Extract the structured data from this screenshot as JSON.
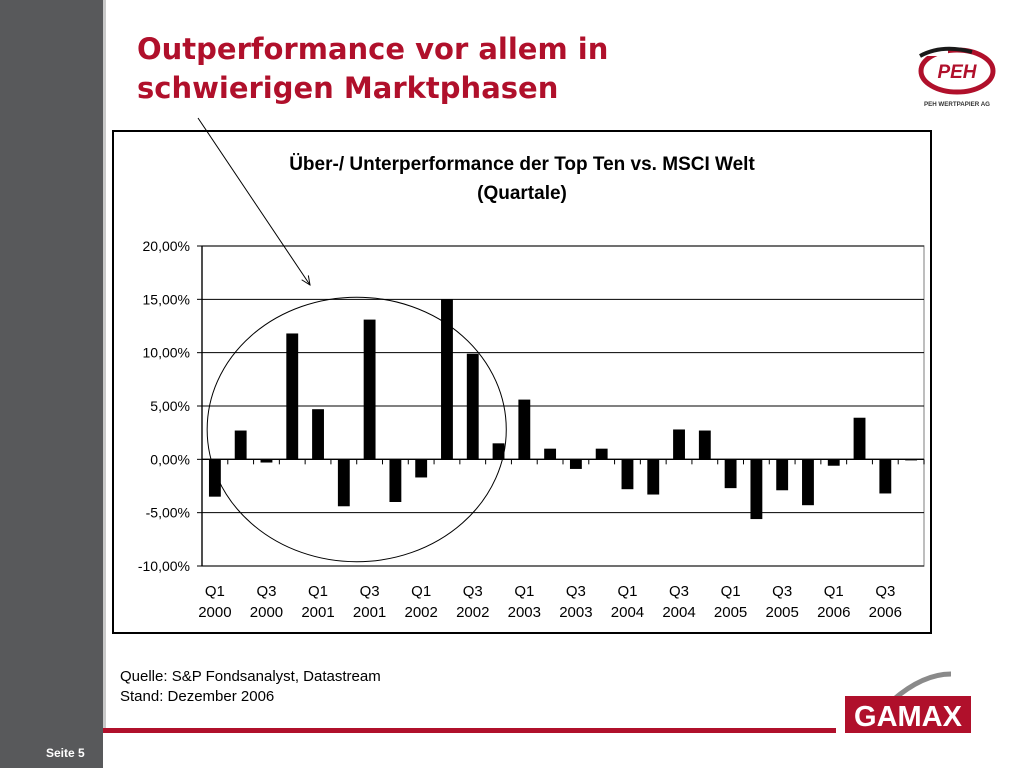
{
  "slide": {
    "title_line1": "Outperformance vor allem in",
    "title_line2": "schwierigen Marktphasen",
    "page_label": "Seite 5",
    "source_line1": "Quelle: S&P Fondsanalyst, Datastream",
    "source_line2": "Stand: Dezember 2006",
    "logos": {
      "peh_text": "PEH",
      "peh_caption": "PEH WERTPAPIER AG",
      "gamax_text": "GAMAX"
    },
    "colors": {
      "accent": "#b0102b",
      "sidebar": "#58595b",
      "bar": "#000000"
    }
  },
  "chart_data": {
    "type": "bar",
    "title_line1": "Über-/ Unterperformance der Top Ten vs. MSCI Welt",
    "title_line2": "(Quartale)",
    "ylim": [
      -10,
      20
    ],
    "yticks": [
      -10,
      -5,
      0,
      5,
      10,
      15,
      20
    ],
    "ytick_labels": [
      "-10,00%",
      "-5,00%",
      "0,00%",
      "5,00%",
      "10,00%",
      "15,00%",
      "20,00%"
    ],
    "grid": true,
    "categories": [
      "Q1 2000",
      "Q2 2000",
      "Q3 2000",
      "Q4 2000",
      "Q1 2001",
      "Q2 2001",
      "Q3 2001",
      "Q4 2001",
      "Q1 2002",
      "Q2 2002",
      "Q3 2002",
      "Q4 2002",
      "Q1 2003",
      "Q2 2003",
      "Q3 2003",
      "Q4 2003",
      "Q1 2004",
      "Q2 2004",
      "Q3 2004",
      "Q4 2004",
      "Q1 2005",
      "Q2 2005",
      "Q3 2005",
      "Q4 2005",
      "Q1 2006",
      "Q2 2006",
      "Q3 2006",
      "Q4 2006"
    ],
    "values": [
      -3.5,
      2.7,
      -0.3,
      11.8,
      4.7,
      -4.4,
      13.1,
      -4.0,
      -1.7,
      15.0,
      9.9,
      1.5,
      5.6,
      1.0,
      -0.9,
      1.0,
      -2.8,
      -3.3,
      2.8,
      2.7,
      -2.7,
      -5.6,
      -2.9,
      -4.3,
      -0.6,
      3.9,
      -3.2,
      -0.1
    ],
    "xtick_labels": [
      {
        "q": "Q1",
        "y": "2000"
      },
      {
        "q": "Q3",
        "y": "2000"
      },
      {
        "q": "Q1",
        "y": "2001"
      },
      {
        "q": "Q3",
        "y": "2001"
      },
      {
        "q": "Q1",
        "y": "2002"
      },
      {
        "q": "Q3",
        "y": "2002"
      },
      {
        "q": "Q1",
        "y": "2003"
      },
      {
        "q": "Q3",
        "y": "2003"
      },
      {
        "q": "Q1",
        "y": "2004"
      },
      {
        "q": "Q3",
        "y": "2004"
      },
      {
        "q": "Q1",
        "y": "2005"
      },
      {
        "q": "Q3",
        "y": "2005"
      },
      {
        "q": "Q1",
        "y": "2006"
      },
      {
        "q": "Q3",
        "y": "2006"
      }
    ]
  }
}
